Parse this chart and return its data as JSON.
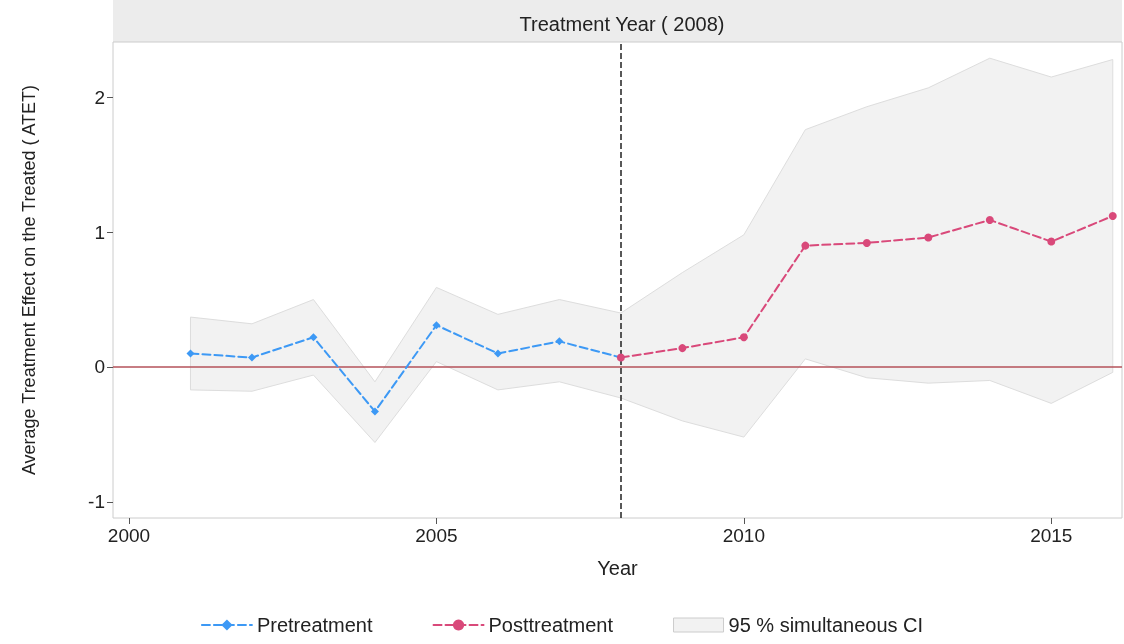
{
  "chart_data": {
    "type": "line",
    "title": "Treatment Year ( 2008)",
    "xlabel": "Year",
    "ylabel": "Average Treatment Effect on the Treated ( ATET)",
    "xlim": [
      1999.74,
      2016.15
    ],
    "xticks": [
      2000,
      2005,
      2010,
      2015
    ],
    "ylim": [
      -1.12,
      2.41
    ],
    "yticks": [
      -1,
      0,
      1,
      2
    ],
    "grid": false,
    "legend": "bottom",
    "line_style": "dashed",
    "series": [
      {
        "name": "Pretreatment",
        "color": "#3d99f5",
        "marker": "diamond",
        "x": [
          2001,
          2002,
          2003,
          2004,
          2005,
          2006,
          2007,
          2008
        ],
        "values": [
          0.1,
          0.07,
          0.22,
          -0.33,
          0.31,
          0.1,
          0.19,
          0.07
        ]
      },
      {
        "name": "Posttreatment",
        "color": "#d9497a",
        "marker": "circle",
        "x": [
          2008,
          2009,
          2010,
          2011,
          2012,
          2013,
          2014,
          2015,
          2016
        ],
        "values": [
          0.07,
          0.14,
          0.22,
          0.9,
          0.92,
          0.96,
          1.09,
          0.93,
          1.12
        ]
      },
      {
        "name": "95 % simultaneous CI",
        "type": "area",
        "color": "#f2f2f2",
        "x": [
          2001,
          2002,
          2003,
          2004,
          2005,
          2006,
          2007,
          2008,
          2009,
          2010,
          2011,
          2012,
          2013,
          2014,
          2015,
          2016
        ],
        "values": [
          null,
          null,
          null,
          null,
          null,
          null,
          null,
          null,
          null,
          null,
          null,
          null,
          null,
          null,
          null,
          null
        ],
        "lower": [
          -0.17,
          -0.18,
          -0.06,
          -0.56,
          0.04,
          -0.17,
          -0.11,
          -0.23,
          -0.4,
          -0.52,
          0.06,
          -0.08,
          -0.12,
          -0.1,
          -0.27,
          -0.04
        ],
        "upper": [
          0.37,
          0.32,
          0.5,
          -0.11,
          0.59,
          0.39,
          0.5,
          0.4,
          0.7,
          0.98,
          1.76,
          1.93,
          2.07,
          2.29,
          2.15,
          2.28
        ]
      }
    ],
    "ref_lines": [
      {
        "axis": "x",
        "value": 2008,
        "color": "#222222",
        "line_style": "dashed"
      },
      {
        "axis": "y",
        "value": 0,
        "color": "#b5525a",
        "line_style": "solid"
      }
    ]
  }
}
